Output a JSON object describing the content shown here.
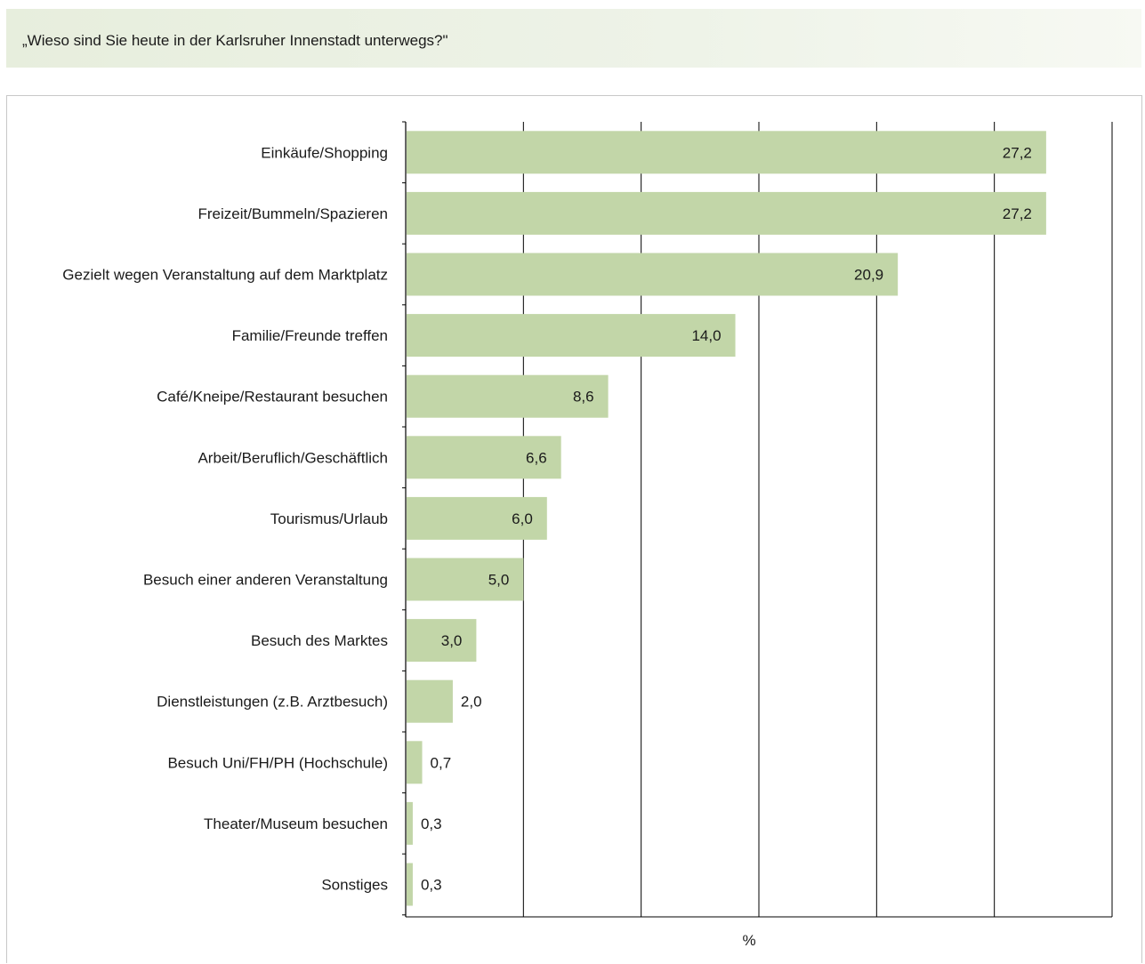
{
  "header": {
    "question": "„Wieso sind Sie heute in der Karlsruher Innenstadt unterwegs?\""
  },
  "colors": {
    "bar": "#c2d6a8",
    "grid": "#000000",
    "header_band": "#e7eedd"
  },
  "chart_data": {
    "type": "bar",
    "orientation": "horizontal",
    "categories": [
      "Einkäufe/Shopping",
      "Freizeit/Bummeln/Spazieren",
      "Gezielt wegen Veranstaltung auf dem Marktplatz",
      "Familie/Freunde treffen",
      "Café/Kneipe/Restaurant besuchen",
      "Arbeit/Beruflich/Geschäftlich",
      "Tourismus/Urlaub",
      "Besuch einer anderen Veranstaltung",
      "Besuch des Marktes",
      "Dienstleistungen (z.B. Arztbesuch)",
      "Besuch Uni/FH/PH (Hochschule)",
      "Theater/Museum besuchen",
      "Sonstiges"
    ],
    "values": [
      27.2,
      27.2,
      20.9,
      14.0,
      8.6,
      6.6,
      6.0,
      5.0,
      3.0,
      2.0,
      0.7,
      0.3,
      0.3
    ],
    "value_labels": [
      "27,2",
      "27,2",
      "20,9",
      "14,0",
      "8,6",
      "6,6",
      "6,0",
      "5,0",
      "3,0",
      "2,0",
      "0,7",
      "0,3",
      "0,3"
    ],
    "xlabel": "%",
    "xlim": [
      0,
      30
    ],
    "x_gridlines": [
      5,
      10,
      15,
      20,
      25
    ],
    "grid": true,
    "tick_labels_visible": false
  }
}
